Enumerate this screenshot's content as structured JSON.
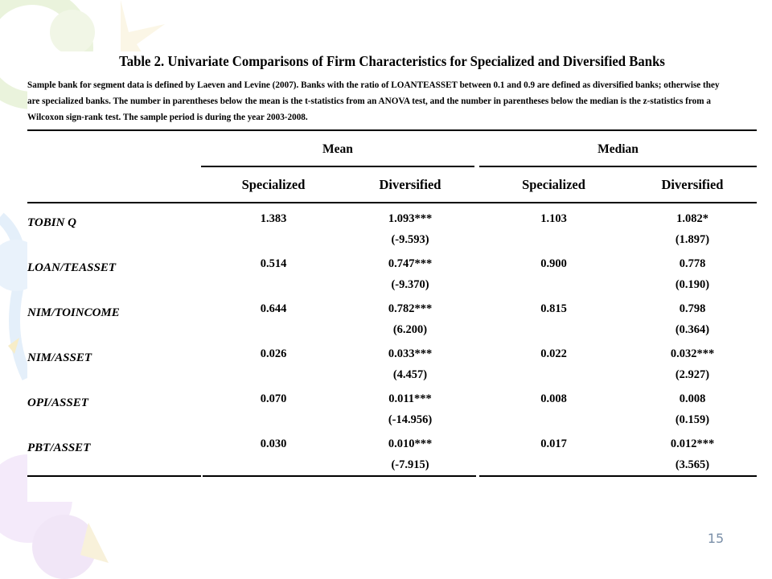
{
  "table": {
    "title": "Table 2. Univariate Comparisons of Firm Characteristics for Specialized and Diversified Banks",
    "description_lines": [
      "Sample bank for segment data is defined by Laeven and Levine (2007). Banks with the ratio of LOANTEASSET between 0.1 and 0.9 are defined as diversified banks; otherwise they",
      "are specialized banks. The number in parentheses below the mean is the t-statistics from an ANOVA test, and the number in parentheses below the median is the z-statistics from a",
      "Wilcoxon sign-rank test. The sample period is during the year 2003-2008."
    ],
    "groups": [
      "Mean",
      "Median"
    ],
    "columns": [
      "Specialized",
      "Diversified",
      "Specialized",
      "Diversified"
    ],
    "rows": [
      {
        "label": "TOBIN Q",
        "mean_spec": "1.383",
        "mean_div": "1.093***",
        "mean_stat": "(-9.593)",
        "med_spec": "1.103",
        "med_div": "1.082*",
        "med_stat": "(1.897)"
      },
      {
        "label": "LOAN/TEASSET",
        "mean_spec": "0.514",
        "mean_div": "0.747***",
        "mean_stat": "(-9.370)",
        "med_spec": "0.900",
        "med_div": "0.778",
        "med_stat": "(0.190)"
      },
      {
        "label": "NIM/TOINCOME",
        "mean_spec": "0.644",
        "mean_div": "0.782***",
        "mean_stat": "(6.200)",
        "med_spec": "0.815",
        "med_div": "0.798",
        "med_stat": "(0.364)"
      },
      {
        "label": "NIM/ASSET",
        "mean_spec": "0.026",
        "mean_div": "0.033***",
        "mean_stat": "(4.457)",
        "med_spec": "0.022",
        "med_div": "0.032***",
        "med_stat": "(2.927)"
      },
      {
        "label": "OPI/ASSET",
        "mean_spec": "0.070",
        "mean_div": "0.011***",
        "mean_stat": "(-14.956)",
        "med_spec": "0.008",
        "med_div": "0.008",
        "med_stat": "(0.159)"
      },
      {
        "label": "PBT/ASSET",
        "mean_spec": "0.030",
        "mean_div": "0.010***",
        "mean_stat": "(-7.915)",
        "med_spec": "0.017",
        "med_div": "0.012***",
        "med_stat": "(3.565)"
      }
    ]
  },
  "page_number": "15",
  "colors": {
    "accent": "#7a8fa8",
    "deco_light": "#eef4e2"
  }
}
